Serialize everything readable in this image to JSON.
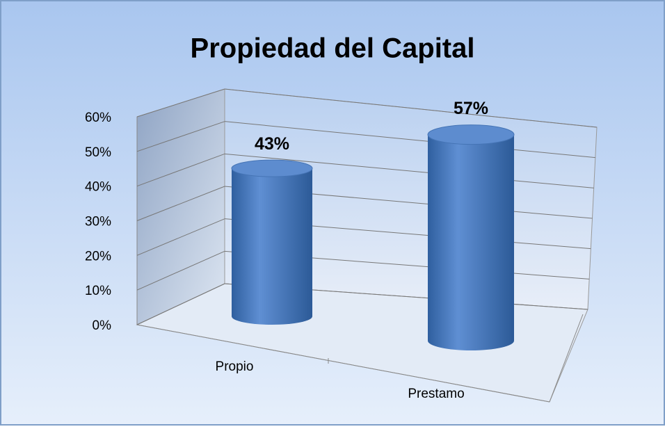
{
  "chart_data": {
    "type": "bar",
    "title": "Propiedad del Capital",
    "categories": [
      "Propio",
      "Prestamo"
    ],
    "values": [
      43,
      57
    ],
    "value_labels": [
      "43%",
      "57%"
    ],
    "color": "#4a7cc2",
    "ylim": [
      0,
      60
    ],
    "yticks": [
      {
        "value": 0,
        "label": "0%"
      },
      {
        "value": 10,
        "label": "10%"
      },
      {
        "value": 20,
        "label": "20%"
      },
      {
        "value": 30,
        "label": "30%"
      },
      {
        "value": 40,
        "label": "40%"
      },
      {
        "value": 50,
        "label": "50%"
      },
      {
        "value": 60,
        "label": "60%"
      }
    ],
    "grid": true
  }
}
